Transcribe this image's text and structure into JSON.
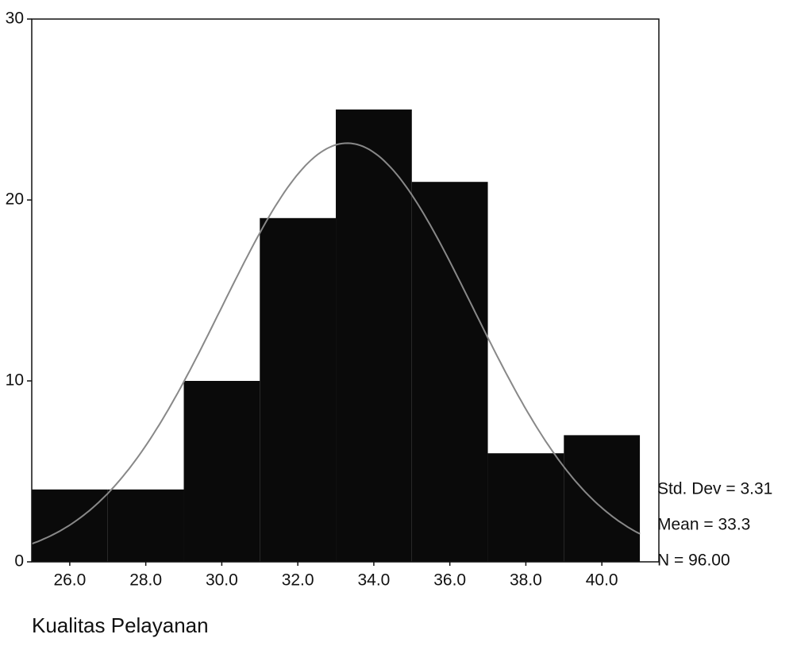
{
  "chart_data": {
    "type": "histogram",
    "x_label": "Kualitas Pelayanan",
    "bins": [
      25,
      27,
      29,
      31,
      33,
      35,
      37,
      39,
      41
    ],
    "values": [
      4,
      4,
      10,
      19,
      25,
      21,
      6,
      7
    ],
    "color": "#0a0a0a",
    "xlim": [
      25,
      41.5
    ],
    "xticks": [
      {
        "value": 26,
        "label": "26.0"
      },
      {
        "value": 28,
        "label": "28.0"
      },
      {
        "value": 30,
        "label": "30.0"
      },
      {
        "value": 32,
        "label": "32.0"
      },
      {
        "value": 34,
        "label": "34.0"
      },
      {
        "value": 36,
        "label": "36.0"
      },
      {
        "value": 38,
        "label": "38.0"
      },
      {
        "value": 40,
        "label": "40.0"
      }
    ],
    "ylim": [
      0,
      30
    ],
    "yticks": [
      0,
      10,
      20,
      30
    ],
    "normal_curve": {
      "std_dev": {
        "value": 3.31,
        "label": "Std. Dev = 3.31"
      },
      "mean": {
        "value": 33.3,
        "label": "Mean = 33.3"
      },
      "n": {
        "value": 96,
        "label": "N = 96.00"
      }
    }
  }
}
